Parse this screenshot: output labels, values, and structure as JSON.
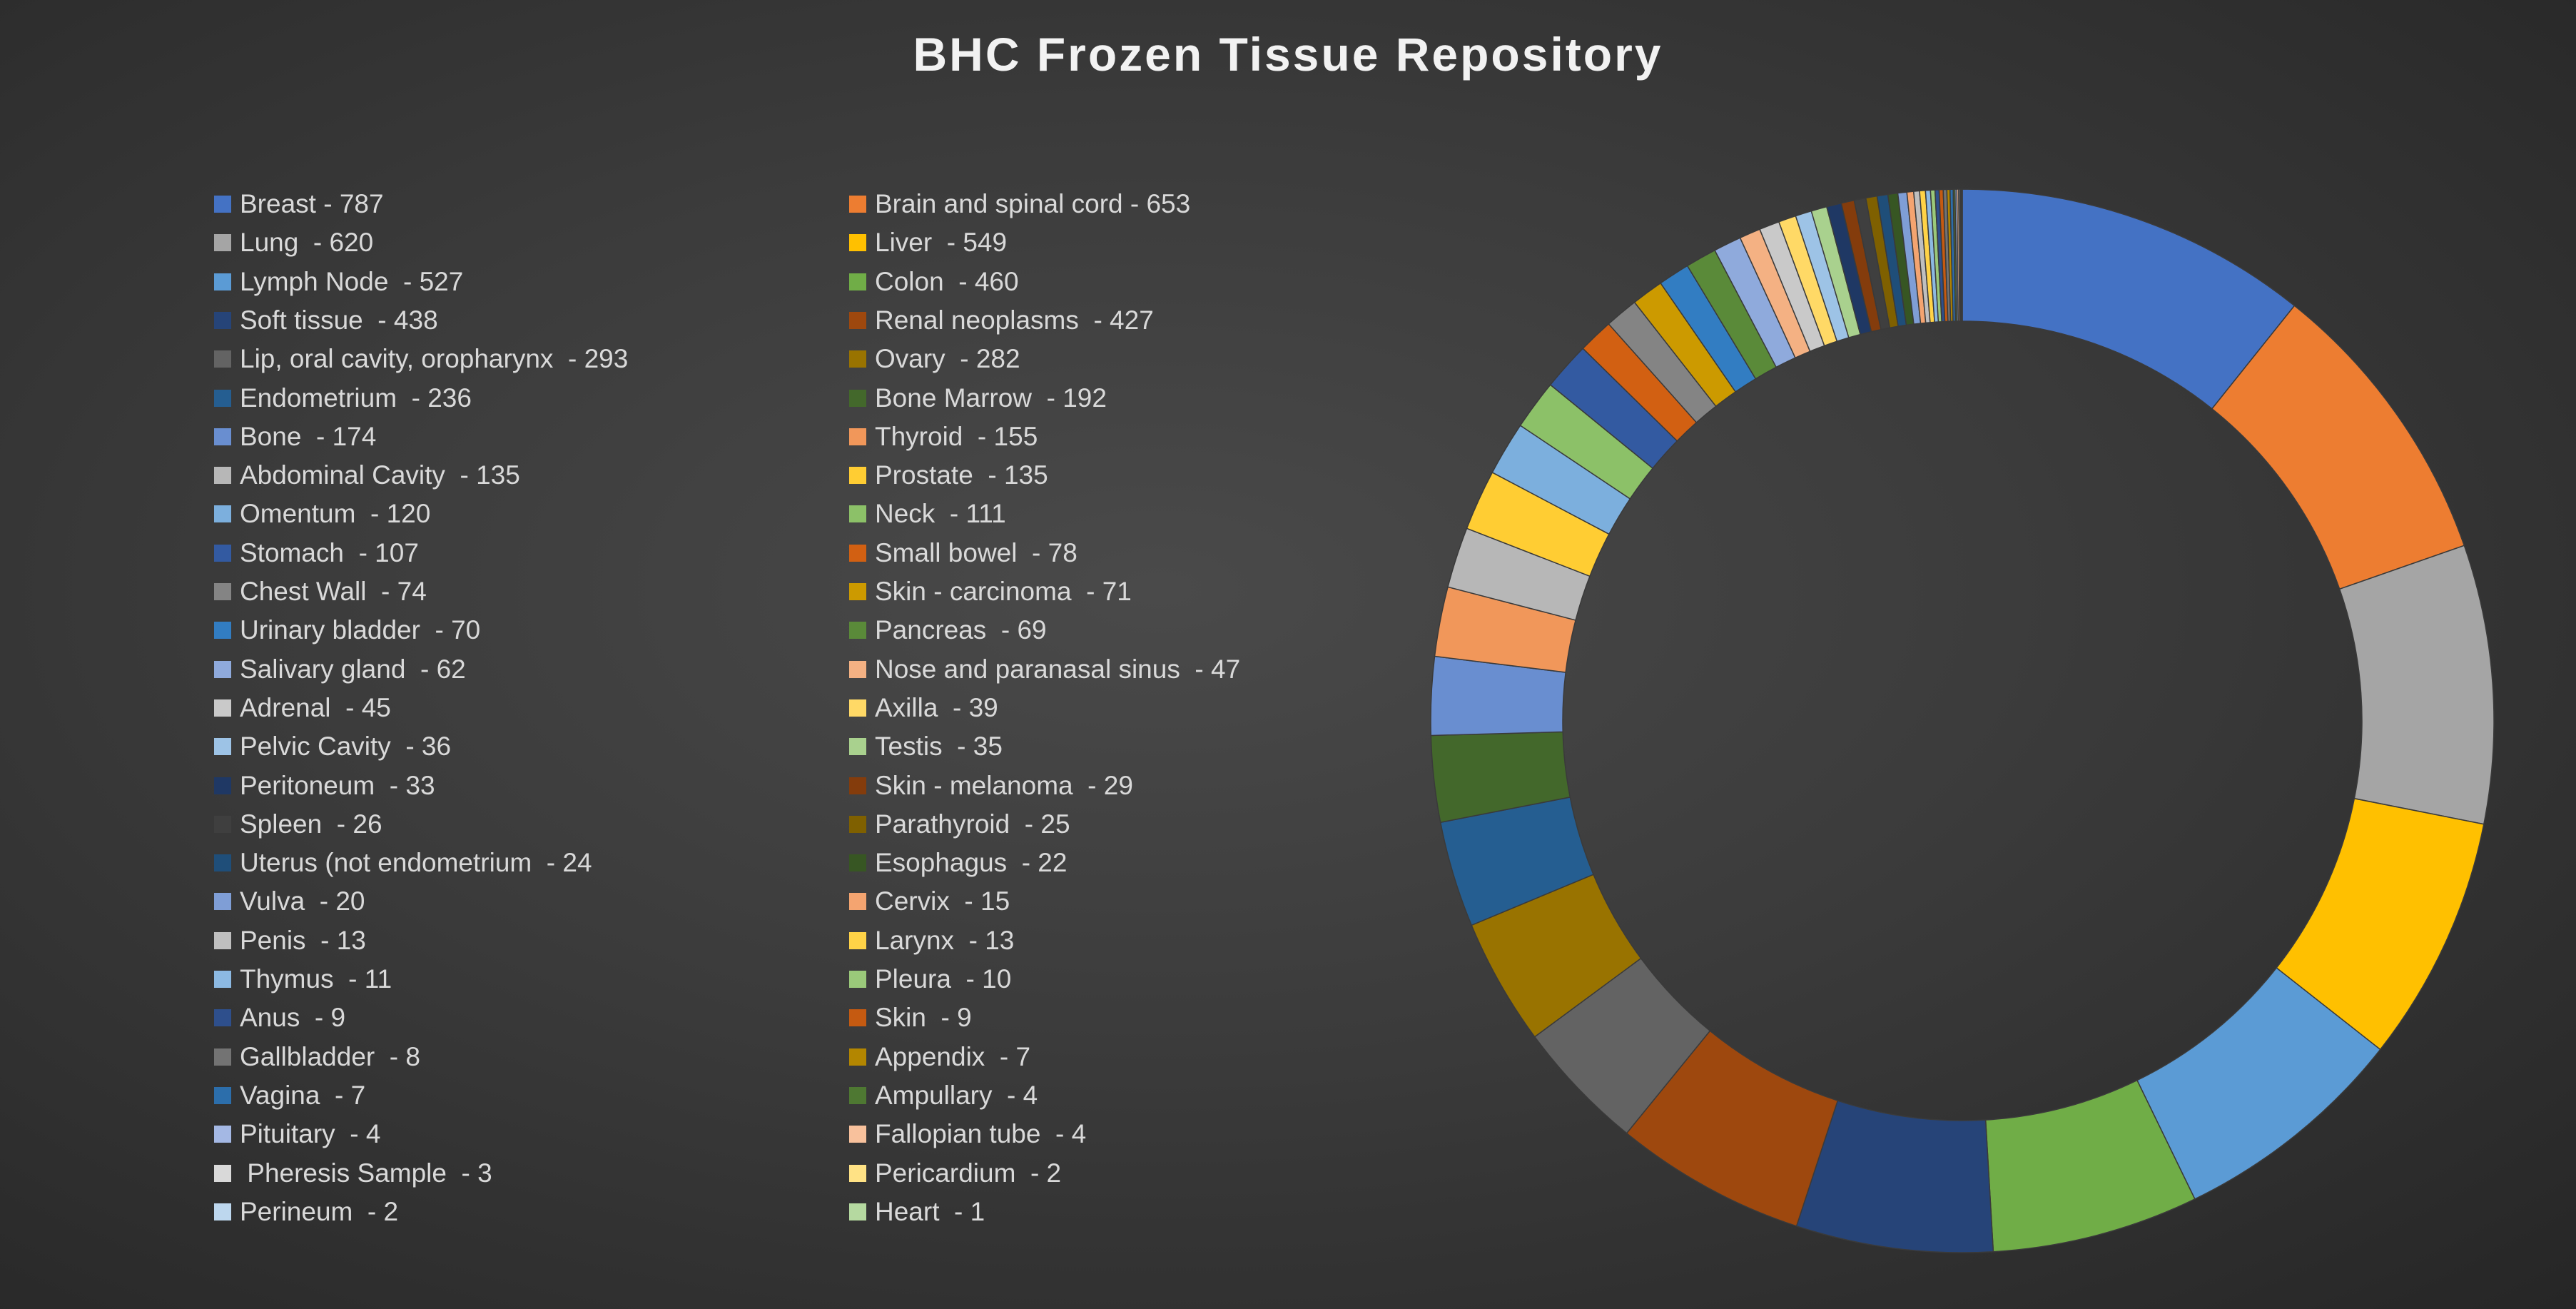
{
  "chart_data": {
    "type": "pie",
    "variant": "doughnut",
    "title": "BHC Frozen Tissue Repository",
    "legend_position": "left",
    "slices": [
      {
        "label": "Breast - 787",
        "name": "Breast",
        "value": 787,
        "color": "#4472C4"
      },
      {
        "label": "Brain and spinal cord - 653",
        "name": "Brain and spinal cord",
        "value": 653,
        "color": "#ED7D31"
      },
      {
        "label": "Lung  - 620",
        "name": "Lung",
        "value": 620,
        "color": "#A5A5A5"
      },
      {
        "label": "Liver  - 549",
        "name": "Liver",
        "value": 549,
        "color": "#FFC000"
      },
      {
        "label": "Lymph Node  - 527",
        "name": "Lymph Node",
        "value": 527,
        "color": "#5B9BD5"
      },
      {
        "label": "Colon  - 460",
        "name": "Colon",
        "value": 460,
        "color": "#70AD47"
      },
      {
        "label": "Soft tissue  - 438",
        "name": "Soft tissue",
        "value": 438,
        "color": "#264478"
      },
      {
        "label": "Renal neoplasms  - 427",
        "name": "Renal neoplasms",
        "value": 427,
        "color": "#9E480E"
      },
      {
        "label": "Lip, oral cavity, oropharynx  - 293",
        "name": "Lip, oral cavity, oropharynx",
        "value": 293,
        "color": "#636363"
      },
      {
        "label": "Ovary  - 282",
        "name": "Ovary",
        "value": 282,
        "color": "#997300"
      },
      {
        "label": "Endometrium  - 236",
        "name": "Endometrium",
        "value": 236,
        "color": "#255E91"
      },
      {
        "label": "Bone Marrow  - 192",
        "name": "Bone Marrow",
        "value": 192,
        "color": "#43682B"
      },
      {
        "label": "Bone  - 174",
        "name": "Bone",
        "value": 174,
        "color": "#698ED0"
      },
      {
        "label": "Thyroid  - 155",
        "name": "Thyroid",
        "value": 155,
        "color": "#F1975A"
      },
      {
        "label": "Abdominal Cavity  - 135",
        "name": "Abdominal Cavity",
        "value": 135,
        "color": "#B7B7B7"
      },
      {
        "label": "Prostate  - 135",
        "name": "Prostate",
        "value": 135,
        "color": "#FFCD33"
      },
      {
        "label": "Omentum  - 120",
        "name": "Omentum",
        "value": 120,
        "color": "#7CAFDD"
      },
      {
        "label": "Neck  - 111",
        "name": "Neck",
        "value": 111,
        "color": "#8CC168"
      },
      {
        "label": "Stomach  - 107",
        "name": "Stomach",
        "value": 107,
        "color": "#335AA1"
      },
      {
        "label": "Small bowel  - 78",
        "name": "Small bowel",
        "value": 78,
        "color": "#D26012"
      },
      {
        "label": "Chest Wall  - 74",
        "name": "Chest Wall",
        "value": 74,
        "color": "#848484"
      },
      {
        "label": "Skin - carcinoma  - 71",
        "name": "Skin - carcinoma",
        "value": 71,
        "color": "#CC9A00"
      },
      {
        "label": "Urinary bladder  - 70",
        "name": "Urinary bladder",
        "value": 70,
        "color": "#327DC2"
      },
      {
        "label": "Pancreas  - 69",
        "name": "Pancreas",
        "value": 69,
        "color": "#5A8A39"
      },
      {
        "label": "Salivary gland  - 62",
        "name": "Salivary gland",
        "value": 62,
        "color": "#8FAADC"
      },
      {
        "label": "Nose and paranasal sinus  - 47",
        "name": "Nose and paranasal sinus",
        "value": 47,
        "color": "#F4B183"
      },
      {
        "label": "Adrenal  - 45",
        "name": "Adrenal",
        "value": 45,
        "color": "#C9C9C9"
      },
      {
        "label": "Axilla  - 39",
        "name": "Axilla",
        "value": 39,
        "color": "#FFD966"
      },
      {
        "label": "Pelvic Cavity  - 36",
        "name": "Pelvic Cavity",
        "value": 36,
        "color": "#9DC3E6"
      },
      {
        "label": "Testis  - 35",
        "name": "Testis",
        "value": 35,
        "color": "#A9D18E"
      },
      {
        "label": "Peritoneum  - 33",
        "name": "Peritoneum",
        "value": 33,
        "color": "#1F3864"
      },
      {
        "label": "Skin - melanoma  - 29",
        "name": "Skin - melanoma",
        "value": 29,
        "color": "#843C0C"
      },
      {
        "label": "Spleen  - 26",
        "name": "Spleen",
        "value": 26,
        "color": "#3F3F3F"
      },
      {
        "label": "Parathyroid  - 25",
        "name": "Parathyroid",
        "value": 25,
        "color": "#7F6000"
      },
      {
        "label": "Uterus (not endometrium  - 24",
        "name": "Uterus (not endometrium",
        "value": 24,
        "color": "#1F4E79"
      },
      {
        "label": "Esophagus  - 22",
        "name": "Esophagus",
        "value": 22,
        "color": "#375623"
      },
      {
        "label": "Vulva  - 20",
        "name": "Vulva",
        "value": 20,
        "color": "#7F9ED6"
      },
      {
        "label": "Cervix  - 15",
        "name": "Cervix",
        "value": 15,
        "color": "#F4A470"
      },
      {
        "label": "Penis  - 13",
        "name": "Penis",
        "value": 13,
        "color": "#BFBFBF"
      },
      {
        "label": "Larynx  - 13",
        "name": "Larynx",
        "value": 13,
        "color": "#FFD347"
      },
      {
        "label": "Thymus  - 11",
        "name": "Thymus",
        "value": 11,
        "color": "#8CB9E2"
      },
      {
        "label": "Pleura  - 10",
        "name": "Pleura",
        "value": 10,
        "color": "#9AC97A"
      },
      {
        "label": "Anus  - 9",
        "name": "Anus",
        "value": 9,
        "color": "#2E4F8C"
      },
      {
        "label": "Skin  - 9",
        "name": "Skin",
        "value": 9,
        "color": "#C55A11"
      },
      {
        "label": "Gallbladder  - 8",
        "name": "Gallbladder",
        "value": 8,
        "color": "#737373"
      },
      {
        "label": "Appendix  - 7",
        "name": "Appendix",
        "value": 7,
        "color": "#B38600"
      },
      {
        "label": "Vagina  - 7",
        "name": "Vagina",
        "value": 7,
        "color": "#2C6EAB"
      },
      {
        "label": "Ampullary  - 4",
        "name": "Ampullary",
        "value": 4,
        "color": "#4E7832"
      },
      {
        "label": "Pituitary  - 4",
        "name": "Pituitary",
        "value": 4,
        "color": "#A4B8E4"
      },
      {
        "label": "Fallopian tube  - 4",
        "name": "Fallopian tube",
        "value": 4,
        "color": "#F8C19C"
      },
      {
        "label": " Pheresis Sample  - 3",
        "name": "Pheresis Sample",
        "value": 3,
        "color": "#D9D9D9"
      },
      {
        "label": "Pericardium  - 2",
        "name": "Pericardium",
        "value": 2,
        "color": "#FFE285"
      },
      {
        "label": "Perineum  - 2",
        "name": "Perineum",
        "value": 2,
        "color": "#BDD7EE"
      },
      {
        "label": "Heart  - 1",
        "name": "Heart",
        "value": 1,
        "color": "#B5D9A0"
      }
    ]
  }
}
